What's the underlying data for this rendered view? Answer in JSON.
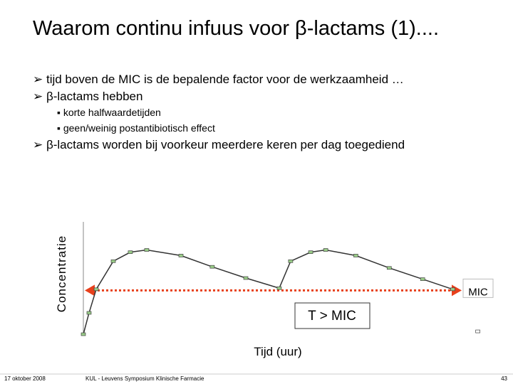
{
  "header": {
    "title": "Waarom continu infuus voor β-lactams (1)...."
  },
  "bullets": [
    "tijd boven de MIC is de bepalende factor voor de werkzaamheid …",
    "β-lactams hebben",
    "β-lactams worden bij voorkeur meerdere keren per dag toegediend"
  ],
  "sub_bullets": [
    "korte halfwaardetijden",
    "geen/weinig postantibiotisch effect"
  ],
  "chart_data": {
    "type": "line",
    "x_label": "Tijd (uur)",
    "y_label": "Concentratie",
    "x": [
      0,
      0.34,
      0.77,
      1.79,
      2.81,
      3.79,
      5.84,
      7.71,
      9.72,
      11.72,
      12.4,
      13.6,
      14.5,
      16.3,
      18.3,
      20.3,
      22.1
    ],
    "values": [
      0,
      19,
      40,
      65,
      73,
      75,
      70,
      60,
      50,
      41,
      65,
      73,
      75,
      70,
      59,
      49,
      40
    ],
    "color": "#333333",
    "marker_color": "#99cc88",
    "extra_point": {
      "x": 23.6,
      "y": 2.5
    },
    "mic": {
      "label": "MIC",
      "value": 39,
      "color": "#e8401c"
    },
    "annotation": "T > MIC",
    "xlim": [
      0,
      24
    ],
    "ylim": [
      0,
      100
    ]
  },
  "footer": {
    "date": "17 oktober 2008",
    "event": "KUL - Leuvens Symposium Klinische Farmacie",
    "page": "43"
  }
}
